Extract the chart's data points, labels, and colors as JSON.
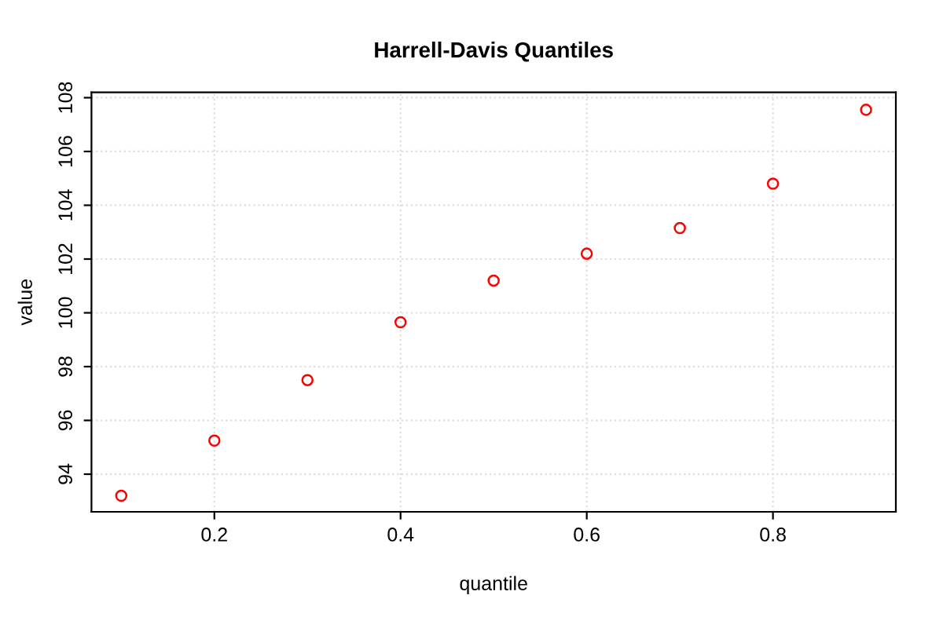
{
  "chart_data": {
    "type": "scatter",
    "title": "Harrell-Davis Quantiles",
    "xlabel": "quantile",
    "ylabel": "value",
    "x": [
      0.1,
      0.2,
      0.3,
      0.4,
      0.5,
      0.6,
      0.7,
      0.8,
      0.9
    ],
    "series": [
      {
        "color": "#ff0000",
        "values": [
          93.2,
          95.25,
          97.5,
          99.65,
          101.2,
          102.2,
          103.15,
          104.8,
          107.55
        ]
      }
    ],
    "xlim": [
      0.068,
      0.932
    ],
    "ylim": [
      92.6,
      108.2
    ],
    "xticks": [
      0.2,
      0.4,
      0.6,
      0.8
    ],
    "yticks": [
      94,
      96,
      98,
      100,
      102,
      104,
      106,
      108
    ],
    "grid": true,
    "marker": "circle"
  }
}
